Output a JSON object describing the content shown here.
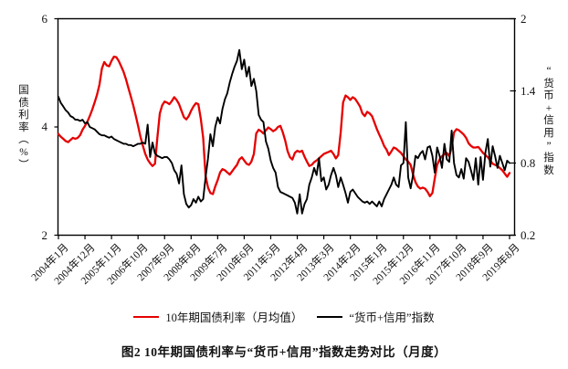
{
  "page": {
    "background": "#ffffff"
  },
  "chart_data": {
    "type": "line",
    "title": "图2 10年期国债利率与“货币+信用”指数走势对比（月度）",
    "grid": false,
    "legend_position": "bottom",
    "left_axis": {
      "label": "国债利率（%）",
      "min": 2,
      "max": 6,
      "ticks": [
        6,
        4,
        2
      ]
    },
    "right_axis": {
      "label": "“货币+信用”指数",
      "min": 0.2,
      "max": 2,
      "ticks": [
        2,
        1.4,
        0.8,
        0.2
      ]
    },
    "x_tick_labels": [
      "2004年1月",
      "2004年12月",
      "2005年11月",
      "2006年10月",
      "2007年9月",
      "2008年8月",
      "2009年7月",
      "2010年6月",
      "2011年5月",
      "2012年4月",
      "2013年3月",
      "2014年2月",
      "2015年1月",
      "2015年12月",
      "2016年11月",
      "2017年10月",
      "2018年9月",
      "2019年8月"
    ],
    "months_per_tick": 11,
    "series": [
      {
        "name": "10年期国债利率（月均值）",
        "color": "#e60000",
        "axis": "left",
        "line_width": 2.3,
        "values": [
          3.87,
          3.82,
          3.78,
          3.74,
          3.72,
          3.76,
          3.8,
          3.78,
          3.8,
          3.85,
          3.95,
          4.02,
          4.1,
          4.2,
          4.32,
          4.45,
          4.6,
          4.78,
          5.08,
          5.2,
          5.14,
          5.12,
          5.22,
          5.3,
          5.29,
          5.22,
          5.12,
          5.02,
          4.88,
          4.72,
          4.56,
          4.4,
          4.22,
          4.02,
          3.82,
          3.65,
          3.5,
          3.4,
          3.33,
          3.28,
          3.32,
          3.8,
          4.25,
          4.4,
          4.47,
          4.45,
          4.42,
          4.48,
          4.55,
          4.5,
          4.42,
          4.3,
          4.18,
          4.14,
          4.2,
          4.3,
          4.38,
          4.44,
          4.42,
          4.15,
          3.8,
          3.1,
          2.88,
          2.78,
          2.76,
          2.9,
          3.02,
          3.16,
          3.22,
          3.2,
          3.16,
          3.12,
          3.18,
          3.24,
          3.3,
          3.4,
          3.44,
          3.38,
          3.32,
          3.3,
          3.36,
          3.5,
          3.88,
          3.95,
          3.92,
          3.88,
          3.94,
          3.99,
          3.96,
          3.92,
          3.95,
          4.0,
          4.02,
          3.9,
          3.75,
          3.55,
          3.44,
          3.4,
          3.52,
          3.56,
          3.54,
          3.56,
          3.45,
          3.36,
          3.28,
          3.3,
          3.35,
          3.38,
          3.42,
          3.46,
          3.5,
          3.52,
          3.54,
          3.56,
          3.5,
          3.42,
          3.48,
          3.9,
          4.45,
          4.58,
          4.55,
          4.5,
          4.55,
          4.52,
          4.45,
          4.38,
          4.25,
          4.2,
          4.28,
          4.25,
          4.2,
          4.08,
          3.96,
          3.86,
          3.76,
          3.65,
          3.58,
          3.48,
          3.55,
          3.62,
          3.6,
          3.56,
          3.52,
          3.46,
          3.4,
          3.36,
          3.3,
          3.12,
          2.98,
          2.9,
          2.86,
          2.88,
          2.86,
          2.8,
          2.72,
          2.78,
          3.05,
          3.3,
          3.4,
          3.46,
          3.5,
          3.52,
          3.46,
          3.62,
          3.9,
          3.96,
          3.94,
          3.9,
          3.86,
          3.8,
          3.7,
          3.65,
          3.62,
          3.62,
          3.63,
          3.58,
          3.52,
          3.48,
          3.44,
          3.38,
          3.32,
          3.3,
          3.28,
          3.24,
          3.2,
          3.14,
          3.08,
          3.15
        ]
      },
      {
        "name": "“货币+信用”指数",
        "color": "#000000",
        "axis": "right",
        "line_width": 1.9,
        "values": [
          1.35,
          1.3,
          1.27,
          1.24,
          1.22,
          1.19,
          1.18,
          1.16,
          1.16,
          1.15,
          1.16,
          1.13,
          1.14,
          1.1,
          1.09,
          1.08,
          1.06,
          1.04,
          1.03,
          1.03,
          1.02,
          1.01,
          1.02,
          1.0,
          0.99,
          0.98,
          0.97,
          0.96,
          0.96,
          0.95,
          0.95,
          0.94,
          0.95,
          0.96,
          0.96,
          0.97,
          0.96,
          1.12,
          0.85,
          0.97,
          0.88,
          0.86,
          0.85,
          0.84,
          0.85,
          0.85,
          0.83,
          0.8,
          0.74,
          0.71,
          0.63,
          0.78,
          0.54,
          0.46,
          0.43,
          0.45,
          0.5,
          0.47,
          0.52,
          0.48,
          0.5,
          0.68,
          0.84,
          1.04,
          0.94,
          1.1,
          1.18,
          1.13,
          1.25,
          1.33,
          1.38,
          1.47,
          1.54,
          1.6,
          1.65,
          1.74,
          1.58,
          1.66,
          1.52,
          1.6,
          1.44,
          1.5,
          1.4,
          1.2,
          1.16,
          1.14,
          0.98,
          0.92,
          0.82,
          0.76,
          0.72,
          0.6,
          0.56,
          0.55,
          0.54,
          0.53,
          0.52,
          0.51,
          0.47,
          0.38,
          0.54,
          0.38,
          0.46,
          0.5,
          0.62,
          0.68,
          0.76,
          0.7,
          0.84,
          0.65,
          0.68,
          0.58,
          0.62,
          0.7,
          0.76,
          0.7,
          0.6,
          0.68,
          0.62,
          0.55,
          0.47,
          0.56,
          0.58,
          0.55,
          0.52,
          0.5,
          0.48,
          0.47,
          0.48,
          0.46,
          0.48,
          0.46,
          0.44,
          0.48,
          0.44,
          0.5,
          0.54,
          0.58,
          0.62,
          0.68,
          0.62,
          0.6,
          0.78,
          0.8,
          1.14,
          0.68,
          0.59,
          0.7,
          0.86,
          0.84,
          0.88,
          0.9,
          0.83,
          0.93,
          0.94,
          0.86,
          0.72,
          0.93,
          0.86,
          0.76,
          0.96,
          0.83,
          0.81,
          1.07,
          0.8,
          0.7,
          0.68,
          0.75,
          0.67,
          0.84,
          0.81,
          0.74,
          0.66,
          0.84,
          0.62,
          0.85,
          0.66,
          0.89,
          1.0,
          0.77,
          0.94,
          0.86,
          0.76,
          0.86,
          0.8,
          0.74,
          0.82,
          0.8
        ]
      }
    ]
  }
}
